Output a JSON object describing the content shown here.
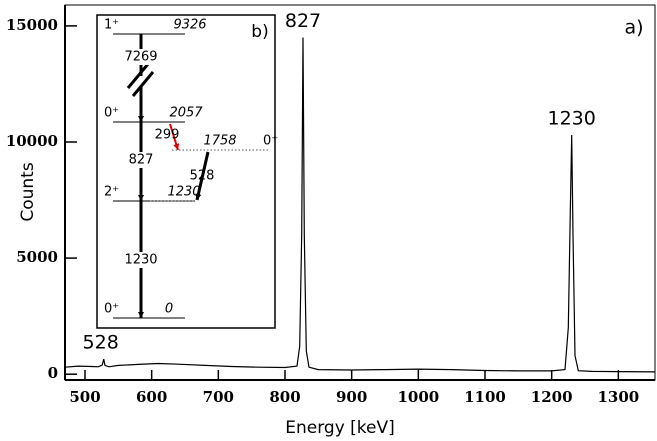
{
  "chart_data": {
    "type": "line",
    "panel_label": "a)",
    "x_label": "Energy [keV]",
    "y_label": "Counts",
    "x": [
      470,
      490,
      510,
      520,
      526,
      528,
      530,
      536,
      550,
      580,
      610,
      640,
      680,
      720,
      760,
      800,
      818,
      822,
      825,
      827,
      829,
      832,
      836,
      850,
      900,
      950,
      1000,
      1050,
      1100,
      1150,
      1200,
      1220,
      1225,
      1228,
      1230,
      1232,
      1235,
      1240,
      1260,
      1300,
      1355
    ],
    "values": [
      300,
      350,
      330,
      320,
      400,
      650,
      380,
      320,
      380,
      420,
      460,
      430,
      380,
      330,
      300,
      290,
      350,
      1200,
      6000,
      14500,
      6000,
      1000,
      300,
      200,
      180,
      200,
      220,
      200,
      160,
      140,
      140,
      200,
      2000,
      7000,
      10300,
      6000,
      800,
      150,
      120,
      110,
      100
    ],
    "color": "#000000",
    "peak_labels": [
      528,
      827,
      1230
    ],
    "xlim": [
      470,
      1355
    ],
    "ylim": [
      -250,
      15900
    ],
    "xticks": [
      500,
      600,
      700,
      800,
      900,
      1000,
      1100,
      1200,
      1300
    ],
    "yticks": [
      0,
      5000,
      10000,
      15000
    ],
    "inset": {
      "label": "b)",
      "levels": [
        {
          "spin": "1⁺",
          "energy": 9326
        },
        {
          "spin": "0⁺",
          "energy": 2057
        },
        {
          "spin": "0⁺",
          "energy": 1758
        },
        {
          "spin": "2⁺",
          "energy": 1230
        },
        {
          "spin": "0⁺",
          "energy": 0
        }
      ],
      "transitions": [
        7269,
        299,
        827,
        528,
        1230
      ]
    }
  }
}
